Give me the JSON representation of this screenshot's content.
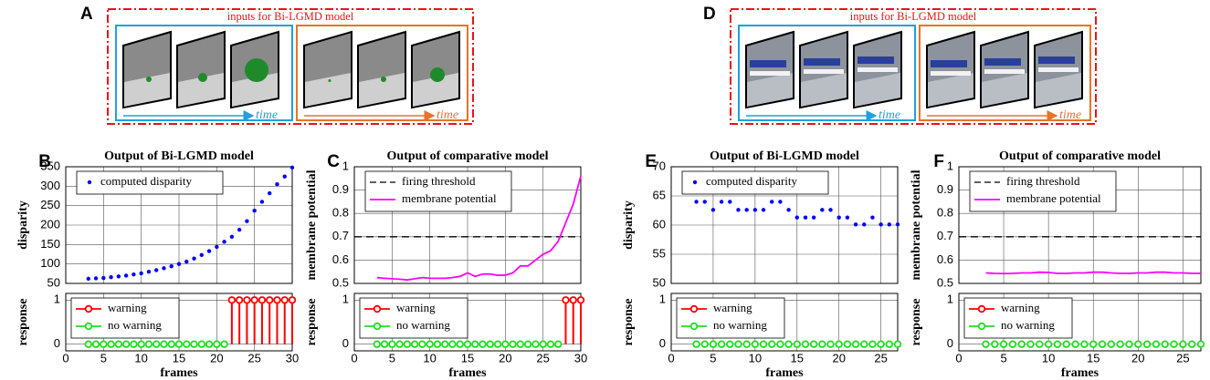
{
  "illustrations": [
    {
      "label": "A",
      "caption": "inputs for Bi-LGMD model",
      "time_labels": [
        "time",
        "time"
      ]
    },
    {
      "label": "D",
      "caption": "inputs for Bi-LGMD model",
      "time_labels": [
        "time",
        "time"
      ]
    }
  ],
  "chart_data": [
    {
      "type": "scatter",
      "panel_label": "B",
      "title": "Output of Bi-LGMD model",
      "ylabel": "disparity",
      "xlim": [
        0,
        30
      ],
      "ylim": [
        50,
        350
      ],
      "xticks": [
        0,
        5,
        10,
        15,
        20,
        25,
        30
      ],
      "yticks": [
        50,
        100,
        150,
        200,
        250,
        300,
        350
      ],
      "grid": true,
      "xtick_labels": false,
      "legend": "upper left",
      "series": [
        {
          "name": "computed disparity",
          "color": "#0000ff",
          "x": [
            3,
            4,
            5,
            6,
            7,
            8,
            9,
            10,
            11,
            12,
            13,
            14,
            15,
            16,
            17,
            18,
            19,
            20,
            21,
            22,
            23,
            24,
            25,
            26,
            27,
            28,
            29,
            30
          ],
          "values": [
            62,
            63,
            64,
            66,
            68,
            70,
            73,
            76,
            80,
            84,
            89,
            94,
            100,
            106,
            114,
            123,
            133,
            144,
            157,
            170,
            188,
            210,
            237,
            260,
            282,
            305,
            325,
            348
          ]
        }
      ]
    },
    {
      "type": "stem",
      "xlabel": "frames",
      "ylabel": "response",
      "xlim": [
        0,
        30
      ],
      "ylim": [
        -0.15,
        1.15
      ],
      "xticks": [
        0,
        5,
        10,
        15,
        20,
        25,
        30
      ],
      "yticks": [
        0,
        1
      ],
      "grid": true,
      "legend": "upper left",
      "series": [
        {
          "name": "warning",
          "color": "#ff0000",
          "x": [
            22,
            23,
            24,
            25,
            26,
            27,
            28,
            29,
            30
          ],
          "values": [
            1,
            1,
            1,
            1,
            1,
            1,
            1,
            1,
            1
          ]
        },
        {
          "name": "no warning",
          "color": "#22dd22",
          "x": [
            3,
            4,
            5,
            6,
            7,
            8,
            9,
            10,
            11,
            12,
            13,
            14,
            15,
            16,
            17,
            18,
            19,
            20,
            21
          ],
          "values": [
            0,
            0,
            0,
            0,
            0,
            0,
            0,
            0,
            0,
            0,
            0,
            0,
            0,
            0,
            0,
            0,
            0,
            0,
            0
          ]
        }
      ]
    },
    {
      "type": "line",
      "panel_label": "C",
      "title": "Output of comparative model",
      "ylabel": "membrane potential",
      "xlim": [
        0,
        30
      ],
      "ylim": [
        0.5,
        1
      ],
      "xticks": [
        0,
        5,
        10,
        15,
        20,
        25,
        30
      ],
      "yticks": [
        0.5,
        0.6,
        0.7,
        0.8,
        0.9,
        1
      ],
      "grid": true,
      "xtick_labels": false,
      "legend": "upper left",
      "series": [
        {
          "name": "firing threshold",
          "color": "#000000",
          "style": "dashed",
          "x": [
            0,
            30
          ],
          "values": [
            0.7,
            0.7
          ]
        },
        {
          "name": "membrane potential",
          "color": "#ff00ff",
          "style": "solid",
          "x": [
            3,
            4,
            5,
            6,
            7,
            8,
            9,
            10,
            11,
            12,
            13,
            14,
            15,
            16,
            17,
            18,
            19,
            20,
            21,
            22,
            23,
            24,
            25,
            26,
            27,
            28,
            29,
            30
          ],
          "values": [
            0.525,
            0.522,
            0.52,
            0.518,
            0.515,
            0.52,
            0.525,
            0.522,
            0.522,
            0.522,
            0.525,
            0.53,
            0.545,
            0.53,
            0.54,
            0.54,
            0.535,
            0.535,
            0.545,
            0.575,
            0.575,
            0.6,
            0.625,
            0.64,
            0.68,
            0.76,
            0.84,
            0.96
          ]
        }
      ]
    },
    {
      "type": "stem",
      "xlabel": "frames",
      "ylabel": "response",
      "xlim": [
        0,
        30
      ],
      "ylim": [
        -0.15,
        1.15
      ],
      "xticks": [
        0,
        5,
        10,
        15,
        20,
        25,
        30
      ],
      "yticks": [
        0,
        1
      ],
      "grid": true,
      "legend": "upper left",
      "series": [
        {
          "name": "warning",
          "color": "#ff0000",
          "x": [
            28,
            29,
            30
          ],
          "values": [
            1,
            1,
            1
          ]
        },
        {
          "name": "no warning",
          "color": "#22dd22",
          "x": [
            3,
            4,
            5,
            6,
            7,
            8,
            9,
            10,
            11,
            12,
            13,
            14,
            15,
            16,
            17,
            18,
            19,
            20,
            21,
            22,
            23,
            24,
            25,
            26,
            27
          ],
          "values": [
            0,
            0,
            0,
            0,
            0,
            0,
            0,
            0,
            0,
            0,
            0,
            0,
            0,
            0,
            0,
            0,
            0,
            0,
            0,
            0,
            0,
            0,
            0,
            0,
            0
          ]
        }
      ]
    },
    {
      "type": "scatter",
      "panel_label": "E",
      "title": "Output of Bi-LGMD model",
      "ylabel": "disparity",
      "xlim": [
        0,
        27
      ],
      "ylim": [
        50,
        70
      ],
      "xticks": [
        0,
        5,
        10,
        15,
        20,
        25
      ],
      "yticks": [
        50,
        55,
        60,
        65,
        70
      ],
      "grid": true,
      "xtick_labels": false,
      "legend": "upper left",
      "series": [
        {
          "name": "computed disparity",
          "color": "#0000ff",
          "x": [
            3,
            4,
            5,
            6,
            7,
            8,
            9,
            10,
            11,
            12,
            13,
            14,
            15,
            16,
            17,
            18,
            19,
            20,
            21,
            22,
            23,
            24,
            25,
            26,
            27
          ],
          "values": [
            64,
            64,
            62.6,
            64,
            64,
            62.6,
            62.6,
            62.6,
            62.6,
            64,
            64,
            62.6,
            61.3,
            61.3,
            61.3,
            62.6,
            62.6,
            61.3,
            61.3,
            60.1,
            60.1,
            61.3,
            60.1,
            60.1,
            60.1
          ]
        }
      ]
    },
    {
      "type": "stem",
      "xlabel": "frames",
      "ylabel": "response",
      "xlim": [
        0,
        27
      ],
      "ylim": [
        -0.15,
        1.15
      ],
      "xticks": [
        0,
        5,
        10,
        15,
        20,
        25
      ],
      "yticks": [
        0,
        1
      ],
      "grid": true,
      "legend": "upper left",
      "series": [
        {
          "name": "warning",
          "color": "#ff0000",
          "x": [],
          "values": []
        },
        {
          "name": "no warning",
          "color": "#22dd22",
          "x": [
            3,
            4,
            5,
            6,
            7,
            8,
            9,
            10,
            11,
            12,
            13,
            14,
            15,
            16,
            17,
            18,
            19,
            20,
            21,
            22,
            23,
            24,
            25,
            26,
            27
          ],
          "values": [
            0,
            0,
            0,
            0,
            0,
            0,
            0,
            0,
            0,
            0,
            0,
            0,
            0,
            0,
            0,
            0,
            0,
            0,
            0,
            0,
            0,
            0,
            0,
            0,
            0
          ]
        }
      ]
    },
    {
      "type": "line",
      "panel_label": "F",
      "title": "Output of comparative model",
      "ylabel": "membrane potential",
      "xlim": [
        0,
        27
      ],
      "ylim": [
        0.5,
        1
      ],
      "xticks": [
        0,
        5,
        10,
        15,
        20,
        25
      ],
      "yticks": [
        0.5,
        0.6,
        0.7,
        0.8,
        0.9,
        1
      ],
      "grid": true,
      "xtick_labels": false,
      "legend": "upper left",
      "series": [
        {
          "name": "firing threshold",
          "color": "#000000",
          "style": "dashed",
          "x": [
            0,
            27
          ],
          "values": [
            0.7,
            0.7
          ]
        },
        {
          "name": "membrane potential",
          "color": "#ff00ff",
          "style": "solid",
          "x": [
            3,
            4,
            5,
            6,
            7,
            8,
            9,
            10,
            11,
            12,
            13,
            14,
            15,
            16,
            17,
            18,
            19,
            20,
            21,
            22,
            23,
            24,
            25,
            26,
            27
          ],
          "values": [
            0.545,
            0.543,
            0.542,
            0.543,
            0.545,
            0.545,
            0.548,
            0.547,
            0.543,
            0.543,
            0.545,
            0.545,
            0.548,
            0.548,
            0.545,
            0.543,
            0.543,
            0.545,
            0.545,
            0.548,
            0.548,
            0.545,
            0.545,
            0.543,
            0.543
          ]
        }
      ]
    },
    {
      "type": "stem",
      "xlabel": "frames",
      "ylabel": "response",
      "xlim": [
        0,
        27
      ],
      "ylim": [
        -0.15,
        1.15
      ],
      "xticks": [
        0,
        5,
        10,
        15,
        20,
        25
      ],
      "yticks": [
        0,
        1
      ],
      "grid": true,
      "legend": "upper left",
      "series": [
        {
          "name": "warning",
          "color": "#ff0000",
          "x": [],
          "values": []
        },
        {
          "name": "no warning",
          "color": "#22dd22",
          "x": [
            3,
            4,
            5,
            6,
            7,
            8,
            9,
            10,
            11,
            12,
            13,
            14,
            15,
            16,
            17,
            18,
            19,
            20,
            21,
            22,
            23,
            24,
            25,
            26,
            27
          ],
          "values": [
            0,
            0,
            0,
            0,
            0,
            0,
            0,
            0,
            0,
            0,
            0,
            0,
            0,
            0,
            0,
            0,
            0,
            0,
            0,
            0,
            0,
            0,
            0,
            0,
            0
          ]
        }
      ]
    }
  ]
}
